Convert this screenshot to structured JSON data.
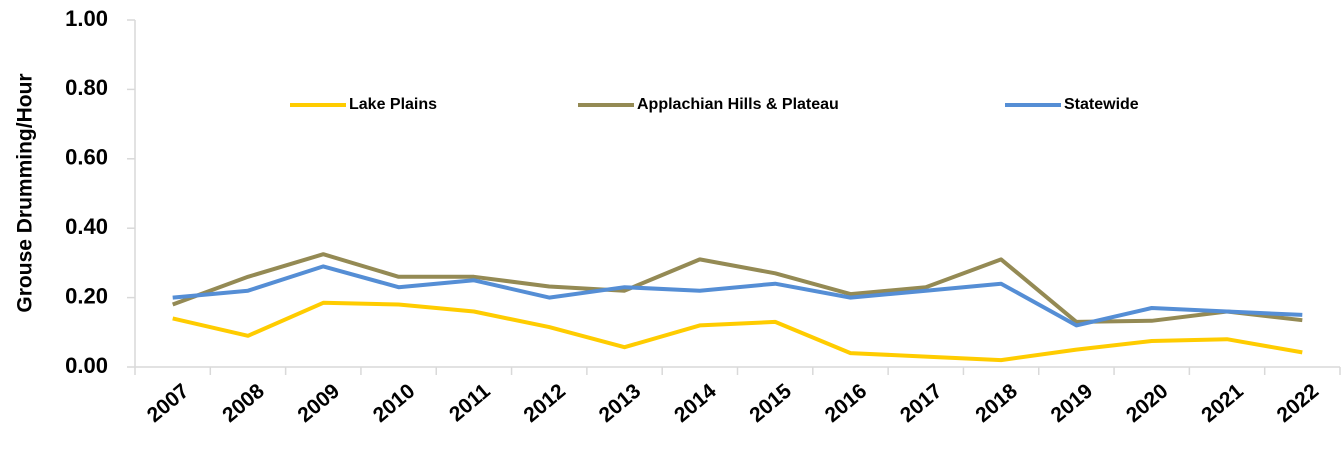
{
  "chart_data": {
    "type": "line",
    "y_label": "Grouse Drumming/Hour",
    "categories": [
      "2007",
      "2008",
      "2009",
      "2010",
      "2011",
      "2012",
      "2013",
      "2014",
      "2015",
      "2016",
      "2017",
      "2018",
      "2019",
      "2020",
      "2021",
      "2022"
    ],
    "series": [
      {
        "name": "Lake Plains",
        "color": "#ffcc00",
        "values": [
          0.14,
          0.09,
          0.185,
          0.18,
          0.16,
          0.115,
          0.057,
          0.12,
          0.13,
          0.04,
          0.03,
          0.02,
          0.05,
          0.075,
          0.08,
          0.042
        ]
      },
      {
        "name": "Applachian Hills & Plateau",
        "color": "#948a54",
        "values": [
          0.18,
          0.26,
          0.325,
          0.26,
          0.26,
          0.232,
          0.22,
          0.31,
          0.27,
          0.21,
          0.23,
          0.31,
          0.13,
          0.133,
          0.16,
          0.135
        ]
      },
      {
        "name": "Statewide",
        "color": "#558ed5",
        "values": [
          0.2,
          0.22,
          0.29,
          0.23,
          0.25,
          0.2,
          0.23,
          0.22,
          0.24,
          0.2,
          0.22,
          0.24,
          0.12,
          0.17,
          0.16,
          0.15
        ]
      }
    ],
    "ylim": [
      0,
      1
    ],
    "yticks": [
      {
        "value": 0,
        "label": "0.00"
      },
      {
        "value": 0.2,
        "label": "0.20"
      },
      {
        "value": 0.4,
        "label": "0.40"
      },
      {
        "value": 0.6,
        "label": "0.60"
      },
      {
        "value": 0.8,
        "label": "0.80"
      },
      {
        "value": 1,
        "label": "1.00"
      }
    ]
  }
}
